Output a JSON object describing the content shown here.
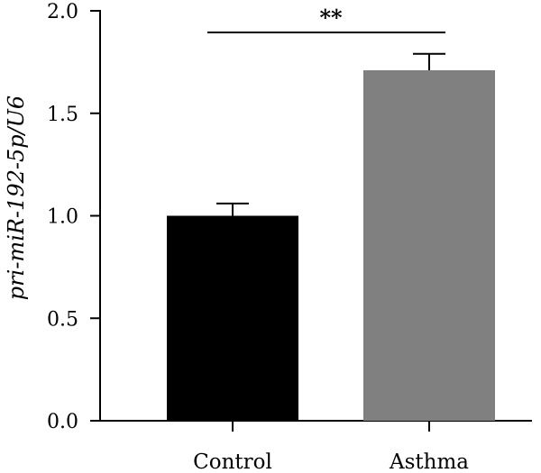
{
  "chart_data": {
    "type": "bar",
    "title": "",
    "xlabel": "",
    "ylabel": "pri-miR-192-5p/U6",
    "categories": [
      "Control",
      "Asthma"
    ],
    "values": [
      1.0,
      1.71
    ],
    "errors": [
      0.06,
      0.08
    ],
    "bar_colors": [
      "#000000",
      "#808080"
    ],
    "ylim": [
      0,
      2.0
    ],
    "yticks": [
      0.0,
      0.5,
      1.0,
      1.5,
      2.0
    ],
    "ytick_labels": [
      "0.0",
      "0.5",
      "1.0",
      "1.5",
      "2.0"
    ],
    "significance": {
      "from": 0,
      "to": 1,
      "label": "**"
    },
    "grid": false,
    "legend": "none"
  }
}
